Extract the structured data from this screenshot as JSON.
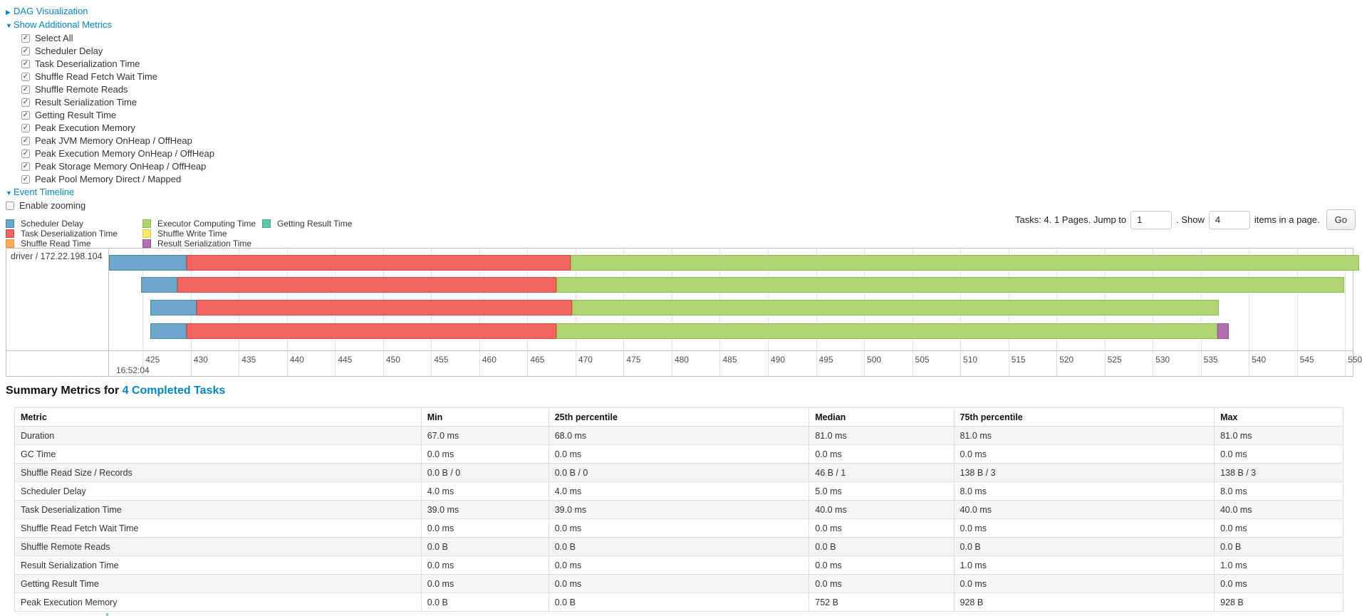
{
  "colors": {
    "link": "#0088cc",
    "grid": "#e3e3e3",
    "frame": "#bfbfbf"
  },
  "sections": {
    "dag": {
      "label": "DAG Visualization",
      "state": "collapsed"
    },
    "additional_metrics": {
      "label": "Show Additional Metrics",
      "state": "expanded"
    },
    "event_timeline": {
      "label": "Event Timeline",
      "state": "expanded"
    }
  },
  "metric_checkboxes": [
    {
      "label": "Select All",
      "checked": true
    },
    {
      "label": "Scheduler Delay",
      "checked": true
    },
    {
      "label": "Task Deserialization Time",
      "checked": true
    },
    {
      "label": "Shuffle Read Fetch Wait Time",
      "checked": true
    },
    {
      "label": "Shuffle Remote Reads",
      "checked": true
    },
    {
      "label": "Result Serialization Time",
      "checked": true
    },
    {
      "label": "Getting Result Time",
      "checked": true
    },
    {
      "label": "Peak Execution Memory",
      "checked": true
    },
    {
      "label": "Peak JVM Memory OnHeap / OffHeap",
      "checked": true
    },
    {
      "label": "Peak Execution Memory OnHeap / OffHeap",
      "checked": true
    },
    {
      "label": "Peak Storage Memory OnHeap / OffHeap",
      "checked": true
    },
    {
      "label": "Peak Pool Memory Direct / Mapped",
      "checked": true
    }
  ],
  "enable_zooming": {
    "label": "Enable zooming",
    "checked": false
  },
  "palette": {
    "scheduler-delay": {
      "label": "Scheduler Delay",
      "fill": "#6FA7CC",
      "border": "#4986AE"
    },
    "task-deserialization": {
      "label": "Task Deserialization Time",
      "fill": "#F4655F",
      "border": "#DC4A42"
    },
    "shuffle-read": {
      "label": "Shuffle Read Time",
      "fill": "#FBAD5B",
      "border": "#ED9436"
    },
    "executor-computing": {
      "label": "Executor Computing Time",
      "fill": "#AED571",
      "border": "#93BC4F"
    },
    "shuffle-write": {
      "label": "Shuffle Write Time",
      "fill": "#F7E670",
      "border": "#E3CC42"
    },
    "result-serialization": {
      "label": "Result Serialization Time",
      "fill": "#B26FB2",
      "border": "#9A4F9A"
    },
    "getting-result": {
      "label": "Getting Result Time",
      "fill": "#66C6AA",
      "border": "#3FAE8F"
    }
  },
  "legend_columns": [
    [
      "scheduler-delay",
      "task-deserialization",
      "shuffle-read"
    ],
    [
      "executor-computing",
      "shuffle-write",
      "result-serialization"
    ],
    [
      "getting-result"
    ]
  ],
  "pagination": {
    "prefix": "Tasks: 4. 1 Pages. Jump to",
    "jump_value": "1",
    "mid": ". Show",
    "show_value": "4",
    "suffix": "items in a page.",
    "go_label": "Go"
  },
  "chart_data": {
    "type": "timeline",
    "group_label": "driver / 172.22.198.104",
    "axis": {
      "start_ms": 421.5,
      "end_ms": 550.8,
      "tick_first": 425,
      "tick_last": 550,
      "tick_step": 5,
      "major_label": "16:52:04",
      "grid": true
    },
    "tasks": [
      {
        "segments": [
          {
            "type": "scheduler-delay",
            "start": 421.5,
            "end": 429.6
          },
          {
            "type": "task-deserialization",
            "start": 429.6,
            "end": 469.5
          },
          {
            "type": "executor-computing",
            "start": 469.5,
            "end": 551.5
          }
        ]
      },
      {
        "segments": [
          {
            "type": "scheduler-delay",
            "start": 424.8,
            "end": 428.6
          },
          {
            "type": "task-deserialization",
            "start": 428.6,
            "end": 468.0
          },
          {
            "type": "executor-computing",
            "start": 468.0,
            "end": 549.9
          }
        ]
      },
      {
        "segments": [
          {
            "type": "scheduler-delay",
            "start": 425.8,
            "end": 430.6
          },
          {
            "type": "task-deserialization",
            "start": 430.6,
            "end": 469.6
          },
          {
            "type": "executor-computing",
            "start": 469.6,
            "end": 536.9
          }
        ]
      },
      {
        "segments": [
          {
            "type": "scheduler-delay",
            "start": 425.8,
            "end": 429.6
          },
          {
            "type": "task-deserialization",
            "start": 429.6,
            "end": 468.0
          },
          {
            "type": "executor-computing",
            "start": 468.0,
            "end": 536.7
          },
          {
            "type": "result-serialization",
            "start": 536.7,
            "end": 537.9
          }
        ]
      }
    ]
  },
  "summary": {
    "title_prefix": "Summary Metrics for",
    "title_link": "4 Completed Tasks",
    "table": {
      "headers": [
        "Metric",
        "Min",
        "25th percentile",
        "Median",
        "75th percentile",
        "Max"
      ],
      "col_widths": [
        "30.6%",
        "9.6%",
        "19.6%",
        "10.9%",
        "19.6%",
        "9.7%"
      ],
      "rows": [
        [
          "Duration",
          "67.0 ms",
          "68.0 ms",
          "81.0 ms",
          "81.0 ms",
          "81.0 ms"
        ],
        [
          "GC Time",
          "0.0 ms",
          "0.0 ms",
          "0.0 ms",
          "0.0 ms",
          "0.0 ms"
        ],
        [
          "Shuffle Read Size / Records",
          "0.0 B / 0",
          "0.0 B / 0",
          "46 B / 1",
          "138 B / 3",
          "138 B / 3"
        ],
        [
          "Scheduler Delay",
          "4.0 ms",
          "4.0 ms",
          "5.0 ms",
          "8.0 ms",
          "8.0 ms"
        ],
        [
          "Task Deserialization Time",
          "39.0 ms",
          "39.0 ms",
          "40.0 ms",
          "40.0 ms",
          "40.0 ms"
        ],
        [
          "Shuffle Read Fetch Wait Time",
          "0.0 ms",
          "0.0 ms",
          "0.0 ms",
          "0.0 ms",
          "0.0 ms"
        ],
        [
          "Shuffle Remote Reads",
          "0.0 B",
          "0.0 B",
          "0.0 B",
          "0.0 B",
          "0.0 B"
        ],
        [
          "Result Serialization Time",
          "0.0 ms",
          "0.0 ms",
          "0.0 ms",
          "1.0 ms",
          "1.0 ms"
        ],
        [
          "Getting Result Time",
          "0.0 ms",
          "0.0 ms",
          "0.0 ms",
          "0.0 ms",
          "0.0 ms"
        ],
        [
          "Peak Execution Memory",
          "0.0 B",
          "0.0 B",
          "752 B",
          "928 B",
          "928 B"
        ]
      ]
    }
  }
}
